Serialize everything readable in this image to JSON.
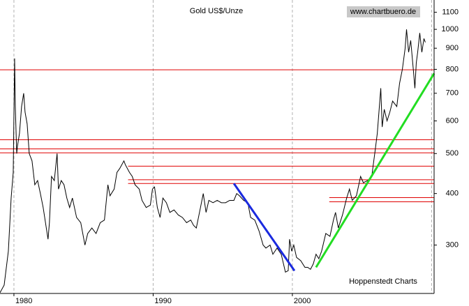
{
  "chart_data": {
    "type": "line",
    "title": "Gold US$/Unze",
    "source": "www.chartbuero.de",
    "credit": "Hoppenstedt Charts",
    "log_scale": true,
    "color": "#000000",
    "x": [
      1979.0,
      1979.3,
      1979.6,
      1979.8,
      1979.95,
      1980.05,
      1980.1,
      1980.2,
      1980.25,
      1980.4,
      1980.55,
      1980.7,
      1980.8,
      1980.95,
      1981.1,
      1981.3,
      1981.5,
      1981.7,
      1981.9,
      1982.1,
      1982.45,
      1982.55,
      1982.7,
      1982.9,
      1983.1,
      1983.2,
      1983.4,
      1983.6,
      1983.8,
      1984.0,
      1984.2,
      1984.5,
      1984.8,
      1985.1,
      1985.3,
      1985.6,
      1985.9,
      1986.2,
      1986.5,
      1986.75,
      1986.9,
      1987.2,
      1987.4,
      1987.6,
      1987.9,
      1988.0,
      1988.3,
      1988.5,
      1988.7,
      1989.0,
      1989.2,
      1989.5,
      1989.8,
      1989.95,
      1990.1,
      1990.3,
      1990.5,
      1990.7,
      1990.95,
      1991.2,
      1991.5,
      1991.8,
      1992.1,
      1992.4,
      1992.7,
      1992.9,
      1993.1,
      1993.4,
      1993.6,
      1993.8,
      1994.0,
      1994.3,
      1994.6,
      1994.9,
      1995.2,
      1995.5,
      1995.8,
      1996.0,
      1996.2,
      1996.5,
      1996.8,
      1997.0,
      1997.3,
      1997.6,
      1997.9,
      1998.1,
      1998.4,
      1998.6,
      1998.9,
      1999.2,
      1999.5,
      1999.7,
      1999.8,
      1999.95,
      2000.1,
      2000.3,
      2000.6,
      2000.9,
      2001.1,
      2001.3,
      2001.5,
      2001.7,
      2001.9,
      2002.1,
      2002.4,
      2002.7,
      2002.95,
      2003.1,
      2003.3,
      2003.6,
      2003.9,
      2004.1,
      2004.3,
      2004.6,
      2004.9,
      2005.1,
      2005.4,
      2005.7,
      2005.95,
      2006.1,
      2006.35,
      2006.45,
      2006.6,
      2006.8,
      2007.0,
      2007.2,
      2007.5,
      2007.7,
      2007.9,
      2008.1,
      2008.2,
      2008.35,
      2008.5,
      2008.7,
      2008.8,
      2008.9,
      2009.0,
      2009.15,
      2009.3,
      2009.45,
      2009.55
    ],
    "values": [
      230,
      240,
      290,
      390,
      450,
      850,
      650,
      500,
      520,
      560,
      650,
      700,
      630,
      590,
      500,
      480,
      420,
      430,
      400,
      370,
      310,
      340,
      440,
      430,
      500,
      410,
      430,
      420,
      390,
      370,
      390,
      350,
      340,
      300,
      320,
      330,
      320,
      340,
      345,
      420,
      395,
      410,
      450,
      460,
      480,
      470,
      450,
      440,
      420,
      410,
      385,
      370,
      375,
      410,
      415,
      370,
      350,
      390,
      380,
      360,
      365,
      355,
      350,
      340,
      345,
      335,
      330,
      370,
      400,
      360,
      385,
      380,
      385,
      380,
      380,
      385,
      385,
      400,
      395,
      385,
      380,
      350,
      345,
      325,
      300,
      295,
      300,
      285,
      295,
      285,
      258,
      260,
      310,
      290,
      300,
      280,
      275,
      265,
      265,
      262,
      270,
      285,
      278,
      290,
      320,
      315,
      345,
      360,
      330,
      355,
      390,
      410,
      385,
      395,
      440,
      425,
      430,
      440,
      510,
      560,
      720,
      580,
      640,
      600,
      630,
      670,
      650,
      740,
      800,
      900,
      1000,
      880,
      940,
      790,
      720,
      830,
      880,
      980,
      880,
      950,
      930
    ],
    "hlines": [
      {
        "value": 798
      },
      {
        "value": 540
      },
      {
        "value": 513
      },
      {
        "value": 502
      },
      {
        "value": 466,
        "from": 1988.2
      },
      {
        "value": 432,
        "from": 1988.2
      },
      {
        "value": 423,
        "from": 1988.2
      },
      {
        "value": 391,
        "from": 2002.65
      },
      {
        "value": 382,
        "from": 2002.65
      }
    ],
    "hline_color": "#e00000",
    "trendlines": [
      {
        "color": "#1a2adf",
        "x": [
          1995.8,
          2000.15
        ],
        "values": [
          423,
          260
        ]
      },
      {
        "color": "#22dd22",
        "x": [
          2001.7,
          2010.18
        ],
        "values": [
          265,
          782
        ]
      }
    ],
    "xlim": [
      1979.0,
      2010.18
    ],
    "ylim": [
      229,
      1178
    ],
    "xticks": [
      1980,
      1990,
      2000
    ],
    "xgrid": [
      1980,
      1990,
      2000,
      2010
    ],
    "yticks": [
      300,
      400,
      500,
      600,
      700,
      800,
      900,
      1000,
      1100
    ]
  }
}
